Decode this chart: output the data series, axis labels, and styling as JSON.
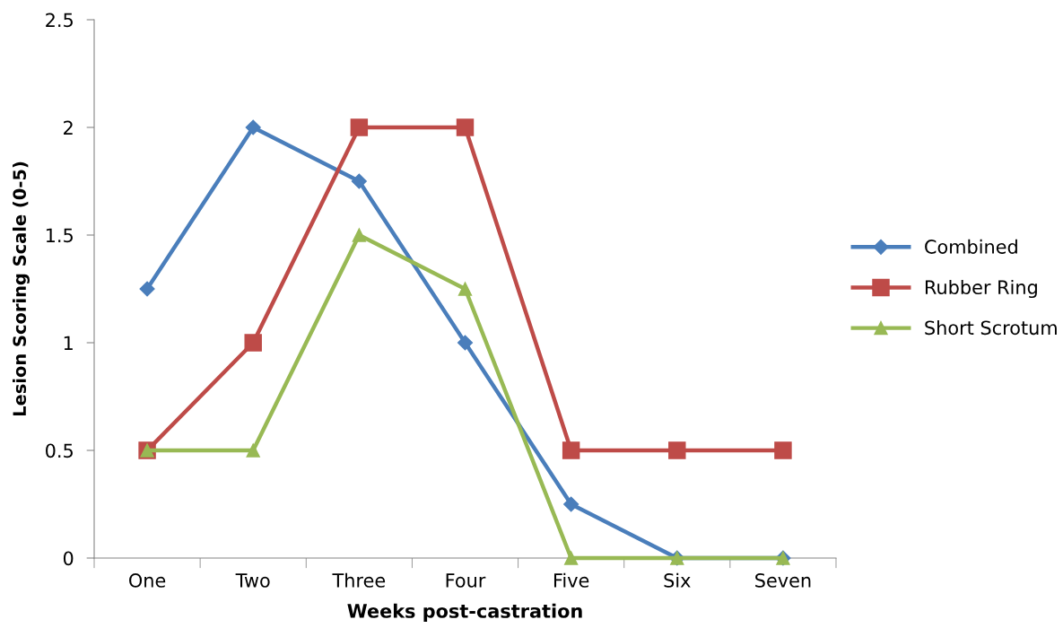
{
  "chart_data": {
    "type": "line",
    "xlabel": "Weeks post-castration",
    "ylabel": "Lesion Scoring Scale (0-5)",
    "categories": [
      "One",
      "Two",
      "Three",
      "Four",
      "Five",
      "Six",
      "Seven"
    ],
    "series": [
      {
        "name": "Combined",
        "color": "#4a7ebb",
        "marker": "diamond",
        "values": [
          1.25,
          2,
          1.75,
          1,
          0.25,
          0,
          0
        ]
      },
      {
        "name": "Rubber Ring",
        "color": "#be4b48",
        "marker": "square",
        "values": [
          0.5,
          1,
          2,
          2,
          0.5,
          0.5,
          0.5
        ]
      },
      {
        "name": "Short Scrotum",
        "color": "#98b954",
        "marker": "triangle",
        "values": [
          0.5,
          0.5,
          1.5,
          1.25,
          0,
          0,
          0
        ]
      }
    ],
    "ylim": [
      0,
      2.5
    ],
    "yticks": [
      0,
      0.5,
      1,
      1.5,
      2,
      2.5
    ],
    "grid": false,
    "legend": "right",
    "line_style": "solid"
  }
}
